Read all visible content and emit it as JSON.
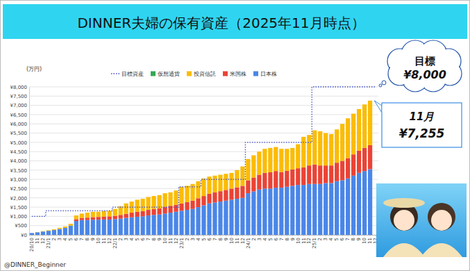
{
  "chart_data": {
    "type": "bar",
    "stacked": true,
    "grid": true,
    "legend": "top",
    "title": "DINNER夫婦の保有資産（2025年11月時点）",
    "unit_label": "(万円)",
    "footer": "@DINNER_Beginner",
    "categories": [
      "20/10",
      "11",
      "12",
      "21/1",
      "2",
      "3",
      "4",
      "5",
      "6",
      "7",
      "8",
      "9",
      "10",
      "11",
      "12",
      "22/1",
      "2",
      "3",
      "4",
      "5",
      "6",
      "7",
      "8",
      "9",
      "10",
      "11",
      "12",
      "23/1",
      "2",
      "3",
      "4",
      "5",
      "6",
      "7",
      "8",
      "9",
      "10",
      "11",
      "12",
      "24/1",
      "2",
      "3",
      "4",
      "5",
      "6",
      "7",
      "8",
      "9",
      "10",
      "11",
      "12",
      "25/1",
      "2",
      "3",
      "4",
      "5",
      "6",
      "7",
      "8",
      "9",
      "10",
      "11",
      "12"
    ],
    "ylim": [
      0,
      8000
    ],
    "yticks": [
      {
        "value": 0,
        "label": "¥0"
      },
      {
        "value": 500,
        "label": "¥500"
      },
      {
        "value": 1000,
        "label": "¥1,000"
      },
      {
        "value": 1500,
        "label": "¥1,500"
      },
      {
        "value": 2000,
        "label": "¥2,000"
      },
      {
        "value": 2500,
        "label": "¥2,500"
      },
      {
        "value": 3000,
        "label": "¥3,000"
      },
      {
        "value": 3500,
        "label": "¥3,500"
      },
      {
        "value": 4000,
        "label": "¥4,000"
      },
      {
        "value": 4500,
        "label": "¥4,500"
      },
      {
        "value": 5000,
        "label": "¥5,000"
      },
      {
        "value": 5500,
        "label": "¥5,500"
      },
      {
        "value": 6000,
        "label": "¥6,000"
      },
      {
        "value": 6500,
        "label": "¥6,500"
      },
      {
        "value": 7000,
        "label": "¥7,000"
      },
      {
        "value": 7500,
        "label": "¥7,500"
      },
      {
        "value": 8000,
        "label": "¥8,000"
      }
    ],
    "series": [
      {
        "name": "目標資産",
        "type": "line",
        "line_style": "dotted",
        "color": "#3b4cc0",
        "values": [
          1000,
          1000,
          1000,
          1300,
          1300,
          1300,
          1300,
          1300,
          1300,
          1300,
          1300,
          1300,
          1300,
          1300,
          1300,
          1500,
          1500,
          1500,
          1500,
          1500,
          1500,
          1500,
          1500,
          1500,
          1500,
          1500,
          1500,
          2600,
          2600,
          2600,
          2600,
          3000,
          3000,
          3000,
          3000,
          3000,
          3000,
          3000,
          3000,
          5000,
          5000,
          5000,
          5000,
          5000,
          5000,
          5000,
          5000,
          5000,
          5000,
          5000,
          5000,
          8000,
          8000,
          8000,
          8000,
          8000,
          8000,
          8000,
          8000,
          8000,
          8000,
          8000,
          8000
        ]
      },
      {
        "name": "仮想通貨",
        "type": "bar",
        "color": "#34a853",
        "values": [
          0,
          0,
          0,
          0,
          0,
          0,
          0,
          0,
          0,
          0,
          0,
          0,
          0,
          0,
          0,
          0,
          0,
          0,
          0,
          0,
          0,
          0,
          0,
          0,
          0,
          0,
          0,
          0,
          0,
          0,
          0,
          0,
          0,
          0,
          0,
          0,
          0,
          0,
          0,
          0,
          0,
          0,
          0,
          0,
          0,
          0,
          0,
          0,
          0,
          0,
          0,
          0,
          0,
          0,
          0,
          0,
          0,
          0,
          0,
          0,
          0,
          0,
          null
        ]
      },
      {
        "name": "投資信託",
        "type": "bar",
        "color": "#fbbc04",
        "values": [
          0,
          10,
          20,
          30,
          40,
          60,
          70,
          100,
          200,
          230,
          270,
          290,
          280,
          310,
          300,
          370,
          470,
          560,
          600,
          650,
          670,
          700,
          700,
          720,
          750,
          730,
          770,
          900,
          880,
          900,
          920,
          950,
          930,
          910,
          890,
          870,
          850,
          930,
          1050,
          1150,
          1200,
          1250,
          1300,
          1320,
          1300,
          1250,
          1190,
          1170,
          1300,
          1650,
          1650,
          1850,
          1850,
          1750,
          1700,
          1800,
          2000,
          2150,
          2200,
          2250,
          2350,
          2405,
          null
        ]
      },
      {
        "name": "米国株",
        "type": "bar",
        "color": "#ea4335",
        "values": [
          0,
          0,
          0,
          0,
          0,
          0,
          0,
          0,
          100,
          120,
          130,
          140,
          150,
          160,
          170,
          180,
          200,
          220,
          250,
          270,
          280,
          300,
          320,
          330,
          350,
          370,
          380,
          400,
          420,
          450,
          480,
          500,
          520,
          540,
          560,
          580,
          600,
          620,
          650,
          700,
          750,
          800,
          850,
          880,
          900,
          850,
          860,
          880,
          900,
          950,
          1000,
          1050,
          1000,
          950,
          950,
          1000,
          1050,
          1100,
          1150,
          1200,
          1250,
          1300,
          null
        ]
      },
      {
        "name": "日本株",
        "type": "bar",
        "color": "#4a86e8",
        "values": [
          100,
          140,
          180,
          220,
          260,
          320,
          380,
          500,
          750,
          800,
          800,
          820,
          820,
          830,
          830,
          850,
          880,
          920,
          950,
          980,
          1000,
          1050,
          1080,
          1100,
          1150,
          1200,
          1250,
          1300,
          1350,
          1400,
          1500,
          1600,
          1700,
          1750,
          1800,
          1850,
          1900,
          1950,
          2000,
          2250,
          2350,
          2450,
          2500,
          2500,
          2550,
          2550,
          2600,
          2650,
          2700,
          2700,
          2750,
          2750,
          2750,
          2800,
          2800,
          2900,
          2950,
          3050,
          3200,
          3350,
          3450,
          3550,
          null
        ]
      }
    ],
    "annotations": [
      {
        "title": "目標",
        "text": "¥8,000",
        "value": 8000
      },
      {
        "title": "11月",
        "text": "¥7,255",
        "value": 7255
      }
    ]
  }
}
